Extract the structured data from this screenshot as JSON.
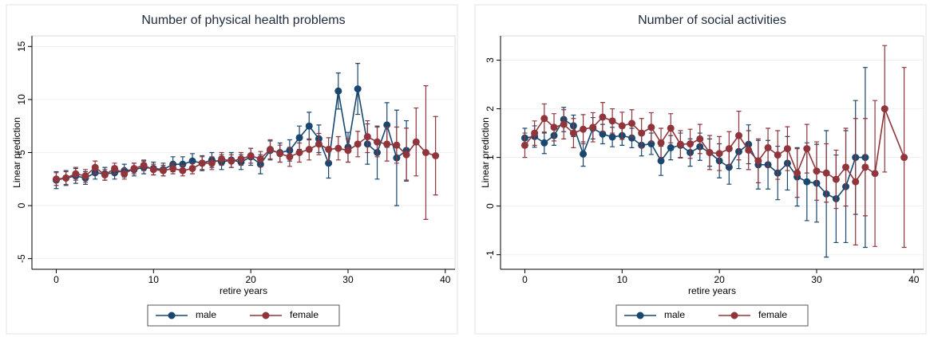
{
  "chart_data": [
    {
      "type": "line",
      "title": "Number of physical health problems",
      "x_label": "retire years",
      "y_label": "Linear prediction",
      "xlim": [
        -2.5,
        41
      ],
      "ylim": [
        -6,
        16
      ],
      "xticks": [
        0,
        10,
        20,
        30,
        40
      ],
      "yticks": [
        -5,
        0,
        5,
        10,
        15
      ],
      "grid": true,
      "legend": "bottom",
      "series": [
        {
          "name": "male",
          "color": "#1a476f",
          "x": [
            0,
            1,
            2,
            3,
            4,
            5,
            6,
            7,
            8,
            9,
            10,
            11,
            12,
            13,
            14,
            15,
            16,
            17,
            18,
            19,
            20,
            21,
            22,
            23,
            24,
            25,
            26,
            27,
            28,
            29,
            30,
            31,
            32,
            33,
            34,
            35,
            36
          ],
          "values": [
            2.4,
            2.6,
            2.8,
            2.6,
            3.1,
            3.0,
            3.1,
            3.3,
            3.4,
            3.6,
            3.5,
            3.4,
            3.9,
            3.9,
            4.2,
            4.0,
            4.3,
            4.1,
            4.3,
            4.1,
            4.6,
            3.9,
            5.2,
            5.0,
            5.2,
            6.4,
            7.5,
            6.3,
            4.0,
            10.8,
            5.5,
            11.0,
            5.8,
            5.0,
            7.6,
            4.5,
            5.2
          ],
          "errors": [
            0.8,
            0.7,
            0.7,
            0.6,
            0.6,
            0.6,
            0.6,
            0.6,
            0.6,
            0.6,
            0.6,
            0.6,
            0.7,
            0.7,
            0.7,
            0.7,
            0.7,
            0.7,
            0.7,
            0.7,
            0.8,
            0.9,
            0.9,
            0.9,
            1.0,
            1.1,
            1.3,
            1.3,
            1.4,
            1.7,
            1.4,
            2.4,
            1.9,
            2.5,
            2.1,
            4.5,
            2.8
          ]
        },
        {
          "name": "female",
          "color": "#90353b",
          "x": [
            0,
            1,
            2,
            3,
            4,
            5,
            6,
            7,
            8,
            9,
            10,
            11,
            12,
            13,
            14,
            15,
            16,
            17,
            18,
            19,
            20,
            21,
            22,
            23,
            24,
            25,
            26,
            27,
            28,
            29,
            30,
            31,
            32,
            33,
            34,
            35,
            36,
            37,
            38,
            39
          ],
          "values": [
            2.5,
            2.6,
            3.0,
            2.8,
            3.6,
            2.9,
            3.5,
            3.0,
            3.5,
            3.8,
            3.4,
            3.3,
            3.5,
            3.3,
            3.5,
            4.0,
            4.0,
            4.4,
            4.2,
            4.4,
            4.7,
            4.4,
            5.3,
            4.9,
            4.6,
            5.0,
            5.3,
            5.8,
            5.3,
            5.4,
            5.2,
            5.8,
            6.5,
            6.0,
            5.8,
            5.7,
            4.8,
            6.0,
            5.0,
            4.7
          ],
          "errors": [
            0.6,
            0.6,
            0.6,
            0.6,
            0.6,
            0.5,
            0.5,
            0.5,
            0.5,
            0.5,
            0.5,
            0.5,
            0.5,
            0.5,
            0.5,
            0.6,
            0.6,
            0.6,
            0.6,
            0.6,
            0.7,
            0.7,
            0.9,
            0.8,
            0.9,
            0.9,
            1.0,
            1.0,
            1.1,
            1.1,
            1.1,
            1.2,
            1.5,
            1.4,
            1.6,
            1.7,
            2.5,
            3.2,
            6.3,
            3.7
          ]
        }
      ]
    },
    {
      "type": "line",
      "title": "Number of social activities",
      "x_label": "retire years",
      "y_label": "Linear prediction",
      "xlim": [
        -2.5,
        41
      ],
      "ylim": [
        -1.3,
        3.5
      ],
      "xticks": [
        0,
        10,
        20,
        30,
        40
      ],
      "yticks": [
        -1,
        0,
        1,
        2,
        3
      ],
      "grid": true,
      "legend": "bottom",
      "series": [
        {
          "name": "male",
          "color": "#1a476f",
          "x": [
            0,
            1,
            2,
            3,
            4,
            5,
            6,
            7,
            8,
            9,
            10,
            11,
            12,
            13,
            14,
            15,
            16,
            17,
            18,
            19,
            20,
            21,
            22,
            23,
            24,
            25,
            26,
            27,
            28,
            29,
            30,
            31,
            32,
            33,
            34,
            35
          ],
          "values": [
            1.4,
            1.43,
            1.3,
            1.45,
            1.78,
            1.65,
            1.07,
            1.6,
            1.48,
            1.42,
            1.45,
            1.4,
            1.25,
            1.28,
            0.93,
            1.2,
            1.25,
            1.1,
            1.22,
            1.1,
            0.93,
            0.8,
            1.12,
            1.27,
            0.85,
            0.85,
            0.68,
            0.88,
            0.6,
            0.5,
            0.47,
            0.25,
            0.15,
            0.4,
            1.0,
            1.0
          ],
          "errors": [
            0.2,
            0.22,
            0.22,
            0.2,
            0.25,
            0.22,
            0.25,
            0.22,
            0.2,
            0.2,
            0.2,
            0.2,
            0.22,
            0.22,
            0.3,
            0.25,
            0.25,
            0.28,
            0.28,
            0.28,
            0.35,
            0.35,
            0.35,
            0.4,
            0.5,
            0.5,
            0.55,
            0.55,
            0.6,
            0.8,
            0.8,
            1.3,
            0.9,
            1.15,
            1.17,
            1.85
          ]
        },
        {
          "name": "female",
          "color": "#90353b",
          "x": [
            0,
            1,
            2,
            3,
            4,
            5,
            6,
            7,
            8,
            9,
            10,
            11,
            12,
            13,
            14,
            15,
            16,
            17,
            18,
            19,
            20,
            21,
            22,
            23,
            24,
            25,
            26,
            27,
            28,
            29,
            30,
            31,
            32,
            33,
            34,
            35,
            36,
            37,
            39
          ],
          "values": [
            1.25,
            1.5,
            1.8,
            1.62,
            1.68,
            1.5,
            1.58,
            1.62,
            1.83,
            1.75,
            1.65,
            1.7,
            1.5,
            1.62,
            1.3,
            1.6,
            1.27,
            1.28,
            1.38,
            1.1,
            1.08,
            1.18,
            1.45,
            1.15,
            0.93,
            1.2,
            1.05,
            1.18,
            0.68,
            1.18,
            0.72,
            0.68,
            0.55,
            0.8,
            0.5,
            0.8,
            0.67,
            2.0,
            1.0
          ],
          "errors": [
            0.25,
            0.25,
            0.3,
            0.28,
            0.3,
            0.3,
            0.3,
            0.3,
            0.3,
            0.25,
            0.28,
            0.28,
            0.3,
            0.3,
            0.3,
            0.3,
            0.28,
            0.3,
            0.3,
            0.35,
            0.35,
            0.35,
            0.5,
            0.4,
            0.45,
            0.4,
            0.5,
            0.45,
            0.5,
            0.5,
            0.6,
            0.6,
            0.6,
            0.8,
            1.3,
            1.0,
            1.5,
            1.3,
            1.85
          ]
        }
      ]
    }
  ]
}
